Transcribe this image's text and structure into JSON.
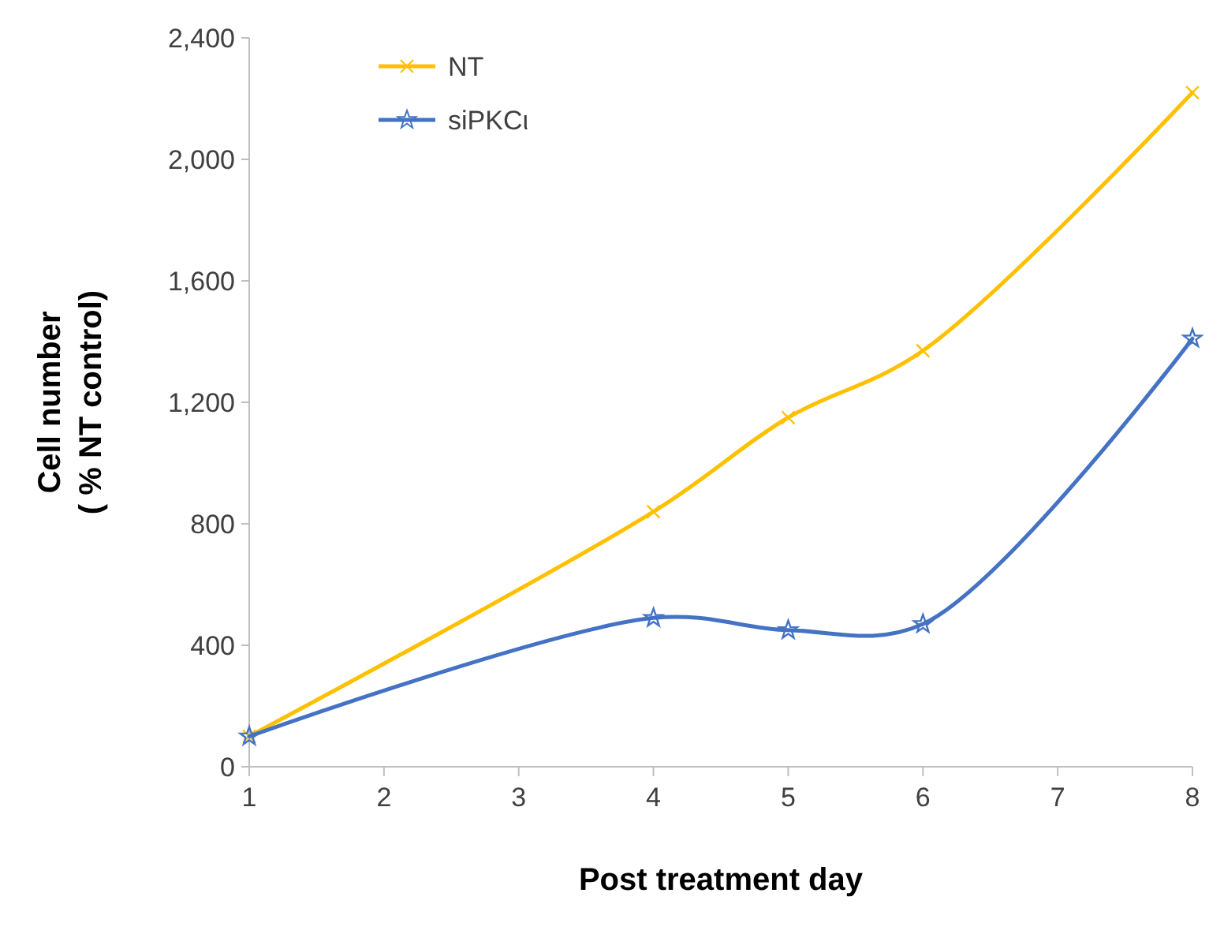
{
  "chart_data": {
    "type": "line",
    "xlabel": "Post treatment day",
    "ylabel": "Cell number\n( % NT control)",
    "x": [
      1,
      4,
      5,
      6,
      8
    ],
    "series": [
      {
        "name": "NT",
        "color": "#ffc000",
        "marker": "cross",
        "values": [
          100,
          840,
          1150,
          1370,
          2220
        ]
      },
      {
        "name": "siPKCι",
        "color": "#4472c4",
        "marker": "star",
        "values": [
          100,
          490,
          450,
          470,
          1410
        ]
      }
    ],
    "xlim": [
      1,
      8
    ],
    "xticks": [
      1,
      2,
      3,
      4,
      5,
      6,
      7,
      8
    ],
    "ylim": [
      0,
      2400
    ],
    "yticks": [
      0,
      400,
      800,
      {
        "value": 1200,
        "label": "1,200"
      },
      {
        "value": 1600,
        "label": "1,600"
      },
      {
        "value": 2000,
        "label": "2,000"
      },
      {
        "value": 2400,
        "label": "2,400"
      }
    ],
    "grid": false,
    "legend": "top left",
    "line_style": "solid"
  }
}
